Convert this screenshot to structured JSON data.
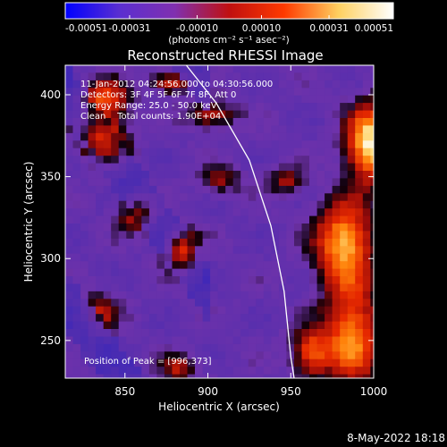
{
  "chart_data": {
    "type": "heatmap",
    "title": "Reconstructed RHESSI Image",
    "xlabel": "Heliocentric X (arcsec)",
    "ylabel": "Heliocentric Y (arcsec)",
    "xlim": [
      814,
      1000
    ],
    "ylim": [
      227,
      418
    ],
    "x_ticks": [
      850,
      900,
      950,
      1000
    ],
    "y_ticks": [
      250,
      300,
      350,
      400
    ],
    "colorbar": {
      "unit_label": "(photons cm⁻² s⁻¹ asec⁻²)",
      "range": [
        -0.00051,
        0.00051
      ],
      "tick_values": [
        -0.00051,
        -0.00031,
        -0.0001,
        0.0001,
        0.00031,
        0.00051
      ],
      "tick_labels": [
        "-0.00051",
        "-0.00031",
        "-0.00010",
        "0.00010",
        "0.00031",
        "0.00051"
      ],
      "colors": [
        "#0000ff",
        "#5b2fd0",
        "#8030b0",
        "#c01010",
        "#ff3a00",
        "#ffd060",
        "#ffffff"
      ]
    },
    "annotations": [
      "11-Jan-2012 04:24:56.000 to 04:30:56.000",
      "Detectors: 3F 4F 5F 6F 7F 8F, Att 0",
      "Energy Range: 25.0 - 50.0 keV",
      "Clean    Total counts: 1.90E+04"
    ],
    "peak_label": "Position of Peak = [996,373]",
    "peak_position": [
      996,
      373
    ],
    "sources": [
      {
        "x": 996,
        "y": 373,
        "strength": 1.0,
        "sx": 10,
        "sy": 16
      },
      {
        "x": 980,
        "y": 312,
        "strength": 0.85,
        "sx": 12,
        "sy": 18
      },
      {
        "x": 985,
        "y": 255,
        "strength": 0.75,
        "sx": 12,
        "sy": 22
      },
      {
        "x": 960,
        "y": 245,
        "strength": 0.6,
        "sx": 8,
        "sy": 10
      },
      {
        "x": 882,
        "y": 307,
        "strength": 0.7,
        "sx": 7,
        "sy": 9
      },
      {
        "x": 835,
        "y": 375,
        "strength": 0.7,
        "sx": 10,
        "sy": 10
      },
      {
        "x": 835,
        "y": 400,
        "strength": 0.6,
        "sx": 10,
        "sy": 8
      },
      {
        "x": 855,
        "y": 330,
        "strength": 0.5,
        "sx": 8,
        "sy": 8
      },
      {
        "x": 900,
        "y": 390,
        "strength": 0.45,
        "sx": 10,
        "sy": 6
      },
      {
        "x": 905,
        "y": 350,
        "strength": 0.35,
        "sx": 9,
        "sy": 6
      },
      {
        "x": 880,
        "y": 235,
        "strength": 0.4,
        "sx": 8,
        "sy": 6
      },
      {
        "x": 833,
        "y": 270,
        "strength": 0.4,
        "sx": 8,
        "sy": 8
      },
      {
        "x": 945,
        "y": 350,
        "strength": 0.35,
        "sx": 8,
        "sy": 6
      },
      {
        "x": 875,
        "y": 410,
        "strength": 0.5,
        "sx": 8,
        "sy": 5
      }
    ],
    "limb_curve": [
      [
        887,
        418
      ],
      [
        905,
        395
      ],
      [
        925,
        360
      ],
      [
        938,
        320
      ],
      [
        946,
        280
      ],
      [
        950,
        240
      ],
      [
        952,
        227
      ]
    ]
  },
  "footer": {
    "timestamp": "8-May-2022 18:18"
  }
}
